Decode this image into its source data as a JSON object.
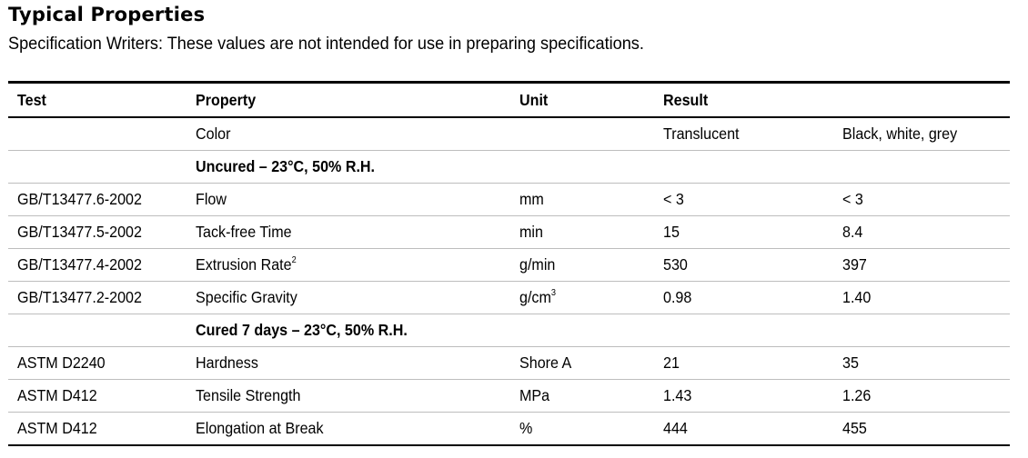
{
  "heading": {
    "title": "Typical Properties",
    "subtitle": "Specification Writers: These values are not intended for use in preparing specifications."
  },
  "table": {
    "headers": {
      "test": "Test",
      "property": "Property",
      "unit": "Unit",
      "result": "Result"
    },
    "color_row": {
      "property": "Color",
      "result_1": "Translucent",
      "result_2": "Black, white, grey"
    },
    "section_uncured": "Uncured – 23°C, 50% R.H.",
    "uncured_rows": [
      {
        "test": "GB/T13477.6-2002",
        "property": "Flow",
        "property_sup": "",
        "unit": "mm",
        "unit_sup": "",
        "result_1": "< 3",
        "result_2": "< 3"
      },
      {
        "test": "GB/T13477.5-2002",
        "property": "Tack-free Time",
        "property_sup": "",
        "unit": "min",
        "unit_sup": "",
        "result_1": "15",
        "result_2": "8.4"
      },
      {
        "test": "GB/T13477.4-2002",
        "property": "Extrusion Rate",
        "property_sup": "2",
        "unit": "g/min",
        "unit_sup": "",
        "result_1": "530",
        "result_2": "397"
      },
      {
        "test": "GB/T13477.2-2002",
        "property": "Specific Gravity",
        "property_sup": "",
        "unit": "g/cm",
        "unit_sup": "3",
        "result_1": "0.98",
        "result_2": "1.40"
      }
    ],
    "section_cured": "Cured 7 days – 23°C, 50% R.H.",
    "cured_rows": [
      {
        "test": "ASTM D2240",
        "property": "Hardness",
        "unit": "Shore A",
        "result_1": "21",
        "result_2": "35"
      },
      {
        "test": "ASTM D412",
        "property": "Tensile Strength",
        "unit": "MPa",
        "result_1": "1.43",
        "result_2": "1.26"
      },
      {
        "test": "ASTM D412",
        "property": "Elongation at Break",
        "unit": "%",
        "result_1": "444",
        "result_2": "455"
      }
    ]
  }
}
